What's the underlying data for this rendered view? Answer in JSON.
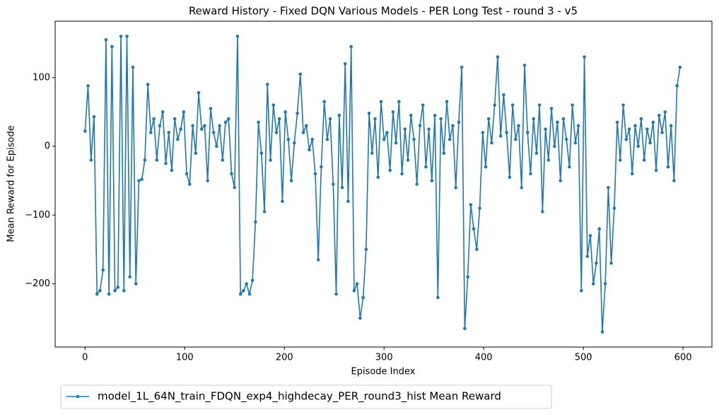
{
  "chart_data": {
    "type": "line",
    "title": "Reward History - Fixed DQN Various Models - PER Long Test - round 3 - v5",
    "xlabel": "Episode Index",
    "ylabel": "Mean Reward for Episode",
    "x": [
      0,
      3,
      6,
      9,
      12,
      15,
      18,
      21,
      24,
      27,
      30,
      33,
      36,
      39,
      42,
      45,
      48,
      51,
      54,
      57,
      60,
      63,
      66,
      69,
      72,
      75,
      78,
      81,
      84,
      87,
      90,
      93,
      96,
      99,
      102,
      105,
      108,
      111,
      114,
      117,
      120,
      123,
      126,
      129,
      132,
      135,
      138,
      141,
      144,
      147,
      150,
      153,
      156,
      159,
      162,
      165,
      168,
      171,
      174,
      177,
      180,
      183,
      186,
      189,
      192,
      195,
      198,
      201,
      204,
      207,
      210,
      213,
      216,
      219,
      222,
      225,
      228,
      231,
      234,
      237,
      240,
      243,
      246,
      249,
      252,
      255,
      258,
      261,
      264,
      267,
      270,
      273,
      276,
      279,
      282,
      285,
      288,
      291,
      294,
      297,
      300,
      303,
      306,
      309,
      312,
      315,
      318,
      321,
      324,
      327,
      330,
      333,
      336,
      339,
      342,
      345,
      348,
      351,
      354,
      357,
      360,
      363,
      366,
      369,
      372,
      375,
      378,
      381,
      384,
      387,
      390,
      393,
      396,
      399,
      402,
      405,
      408,
      411,
      414,
      417,
      420,
      423,
      426,
      429,
      432,
      435,
      438,
      441,
      444,
      447,
      450,
      453,
      456,
      459,
      462,
      465,
      468,
      471,
      474,
      477,
      480,
      483,
      486,
      489,
      492,
      495,
      498,
      501,
      504,
      507,
      510,
      513,
      516,
      519,
      522,
      525,
      528,
      531,
      534,
      537,
      540,
      543,
      546,
      549,
      552,
      555,
      558,
      561,
      564,
      567,
      570,
      573,
      576,
      579,
      582,
      585,
      588,
      591,
      594,
      597
    ],
    "series": [
      {
        "name": "model_1L_64N_train_FDQN_exp4_highdecay_PER_round3_hist Mean Reward",
        "color": "#1f77b4",
        "values": [
          22,
          88,
          -20,
          43,
          -215,
          -210,
          -180,
          155,
          -215,
          145,
          -210,
          -205,
          160,
          -210,
          160,
          -190,
          115,
          -200,
          -50,
          -48,
          -20,
          90,
          20,
          40,
          -20,
          30,
          50,
          -25,
          20,
          -35,
          40,
          10,
          25,
          50,
          -40,
          -55,
          30,
          -10,
          78,
          25,
          30,
          -50,
          55,
          20,
          0,
          30,
          -20,
          35,
          40,
          -40,
          -60,
          160,
          -215,
          -210,
          -200,
          -215,
          -195,
          -110,
          35,
          -10,
          -95,
          90,
          -20,
          60,
          20,
          40,
          -80,
          50,
          10,
          -50,
          5,
          48,
          105,
          20,
          30,
          -5,
          10,
          -40,
          -165,
          -30,
          65,
          10,
          40,
          -55,
          -215,
          45,
          -60,
          120,
          -80,
          145,
          -210,
          -200,
          -250,
          -220,
          -150,
          48,
          -10,
          40,
          -45,
          65,
          10,
          20,
          -35,
          50,
          5,
          65,
          -40,
          25,
          -20,
          45,
          10,
          -55,
          30,
          60,
          -30,
          25,
          -50,
          45,
          -220,
          40,
          -10,
          65,
          10,
          30,
          -60,
          35,
          115,
          -265,
          -190,
          -85,
          -120,
          -150,
          -90,
          20,
          -30,
          40,
          5,
          60,
          130,
          15,
          75,
          20,
          -45,
          60,
          10,
          30,
          -60,
          118,
          20,
          -40,
          40,
          -10,
          60,
          -95,
          25,
          -20,
          55,
          0,
          35,
          -50,
          40,
          10,
          -30,
          60,
          5,
          30,
          -210,
          130,
          -160,
          -130,
          -200,
          -170,
          -120,
          -270,
          -200,
          -60,
          -170,
          -90,
          35,
          -20,
          60,
          10,
          25,
          -40,
          30,
          0,
          40,
          -20,
          25,
          5,
          35,
          -35,
          45,
          20,
          50,
          -30,
          30,
          -50,
          88,
          115
        ]
      }
    ],
    "xlim": [
      -30,
      629
    ],
    "ylim": [
      -292,
      182
    ],
    "xticks": [
      0,
      100,
      200,
      300,
      400,
      500,
      600
    ],
    "yticks": [
      {
        "value": -200,
        "label": "−200"
      },
      {
        "value": -100,
        "label": "−100"
      },
      0,
      100
    ],
    "legend": "below"
  }
}
